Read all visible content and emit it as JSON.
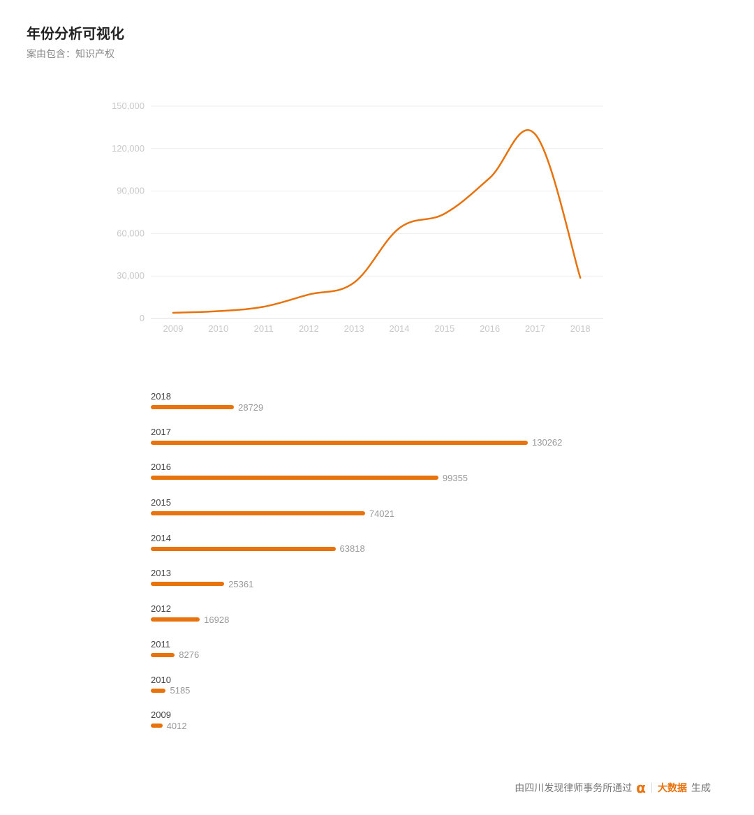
{
  "header": {
    "title": "年份分析可视化",
    "subtitle": "案由包含：知识产权"
  },
  "footer": {
    "prefix": "由四川发现律师事务所通过",
    "icon": "alpha-icon",
    "brand": "大数据",
    "suffix": "生成"
  },
  "colors": {
    "accent": "#e8720c",
    "grid": "#eeeeee",
    "axis_text": "#c8c8c8"
  },
  "chart_data": [
    {
      "type": "line",
      "x": [
        "2009",
        "2010",
        "2011",
        "2012",
        "2013",
        "2014",
        "2015",
        "2016",
        "2017",
        "2018"
      ],
      "series": [
        {
          "values": [
            4012,
            5185,
            8276,
            16928,
            25361,
            63818,
            74021,
            99355,
            130262,
            28729
          ]
        }
      ],
      "ylim": [
        0,
        150000
      ],
      "yticks": [
        "0",
        "30,000",
        "60,000",
        "90,000",
        "120,000",
        "150,000"
      ],
      "grid": true
    },
    {
      "type": "bar",
      "orientation": "horizontal",
      "categories": [
        "2018",
        "2017",
        "2016",
        "2015",
        "2014",
        "2013",
        "2012",
        "2011",
        "2010",
        "2009"
      ],
      "values": [
        28729,
        130262,
        99355,
        74021,
        63818,
        25361,
        16928,
        8276,
        5185,
        4012
      ]
    }
  ]
}
